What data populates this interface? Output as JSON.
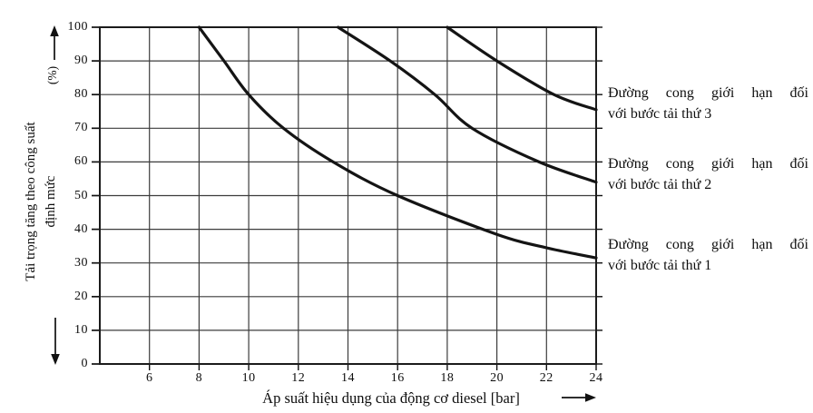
{
  "chart_data": {
    "type": "line",
    "title": "",
    "xlabel": "Áp suất hiệu dụng của động cơ diesel [bar]",
    "ylabel": "Tải trọng tăng theo công suất định mức",
    "ylabel_lines": [
      "Tải trọng tăng theo công suất",
      "định mức"
    ],
    "ylabel_unit": "(%)",
    "xlim": [
      4,
      24
    ],
    "ylim": [
      0,
      100
    ],
    "xticks": [
      6,
      8,
      10,
      12,
      14,
      16,
      18,
      20,
      22,
      24
    ],
    "yticks": [
      0,
      10,
      20,
      30,
      40,
      50,
      60,
      70,
      80,
      90,
      100
    ],
    "grid": true,
    "legend_position": "right-outside",
    "series": [
      {
        "name": "Đường cong giới hạn đối với bước tải thứ 1",
        "points": [
          [
            8,
            100
          ],
          [
            9,
            90
          ],
          [
            10,
            80
          ],
          [
            11.4,
            70
          ],
          [
            13.4,
            60
          ],
          [
            16,
            50
          ],
          [
            20,
            38.5
          ],
          [
            22,
            34.5
          ],
          [
            24,
            31.5
          ]
        ]
      },
      {
        "name": "Đường cong giới hạn đối với bước tải thứ 2",
        "points": [
          [
            13.6,
            100
          ],
          [
            15.7,
            90
          ],
          [
            17.5,
            80
          ],
          [
            19,
            70
          ],
          [
            21.7,
            60
          ],
          [
            24,
            54
          ]
        ]
      },
      {
        "name": "Đường cong giới hạn đối với bước tải thứ 3",
        "points": [
          [
            18,
            100
          ],
          [
            20,
            90
          ],
          [
            22.3,
            80
          ],
          [
            24,
            75.5
          ]
        ]
      }
    ],
    "legend": [
      {
        "line1": "Đường cong giới hạn đối",
        "line2": "với bước tải thứ 3"
      },
      {
        "line1": "Đường cong giới hạn đối",
        "line2": "với bước tải thứ 2"
      },
      {
        "line1": "Đường cong giới hạn đối",
        "line2": "với bước tải thứ 1"
      }
    ]
  },
  "colors": {
    "background": "#ffffff",
    "ink": "#111111",
    "grid": "#3c3c3c",
    "frame": "#1b1b1b",
    "curve": "#141414"
  }
}
